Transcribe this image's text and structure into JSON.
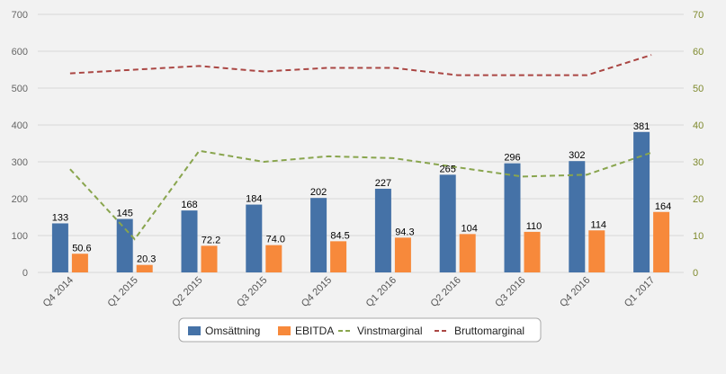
{
  "chart_data": {
    "type": "bar",
    "categories": [
      "Q4 2014",
      "Q1 2015",
      "Q2 2015",
      "Q3 2015",
      "Q4 2015",
      "Q1 2016",
      "Q2 2016",
      "Q3 2016",
      "Q4 2016",
      "Q1 2017"
    ],
    "series": [
      {
        "name": "Omsättning",
        "type": "bar",
        "axis": "left",
        "color": "#4572a7",
        "values": [
          133,
          145,
          168,
          184,
          202,
          227,
          265,
          296,
          302,
          381
        ],
        "labels": [
          "133",
          "145",
          "168",
          "184",
          "202",
          "227",
          "265",
          "296",
          "302",
          "381"
        ]
      },
      {
        "name": "EBITDA",
        "type": "bar",
        "axis": "left",
        "color": "#f7893b",
        "values": [
          50.6,
          20.3,
          72.2,
          74.0,
          84.5,
          94.3,
          104,
          110,
          114,
          164
        ],
        "labels": [
          "50.6",
          "20.3",
          "72.2",
          "74.0",
          "84.5",
          "94.3",
          "104",
          "110",
          "114",
          "164"
        ]
      },
      {
        "name": "Vinstmarginal",
        "type": "line",
        "dash": "dashed",
        "axis": "right",
        "color": "#89a54e",
        "values": [
          28,
          9,
          33,
          30,
          31.5,
          31,
          28.5,
          26,
          26.5,
          32.5
        ]
      },
      {
        "name": "Bruttomarginal",
        "type": "line",
        "dash": "dashed",
        "axis": "right",
        "color": "#aa4643",
        "values": [
          54,
          55,
          56,
          54.5,
          55.5,
          55.5,
          53.5,
          53.5,
          53.5,
          59
        ]
      }
    ],
    "y_left": {
      "ticks": [
        "0",
        "100",
        "200",
        "300",
        "400",
        "500",
        "600",
        "700"
      ],
      "range": [
        0,
        700
      ]
    },
    "y_right": {
      "ticks": [
        "0",
        "10",
        "20",
        "30",
        "40",
        "50",
        "60",
        "70"
      ],
      "range": [
        0,
        70
      ]
    },
    "grid": true,
    "legend_position": "bottom-center"
  },
  "colors": {
    "background": "#f2f2f2",
    "grid": "#d8d8d8",
    "left_ticks": "#666666",
    "right_ticks": "#7f8a2e"
  }
}
